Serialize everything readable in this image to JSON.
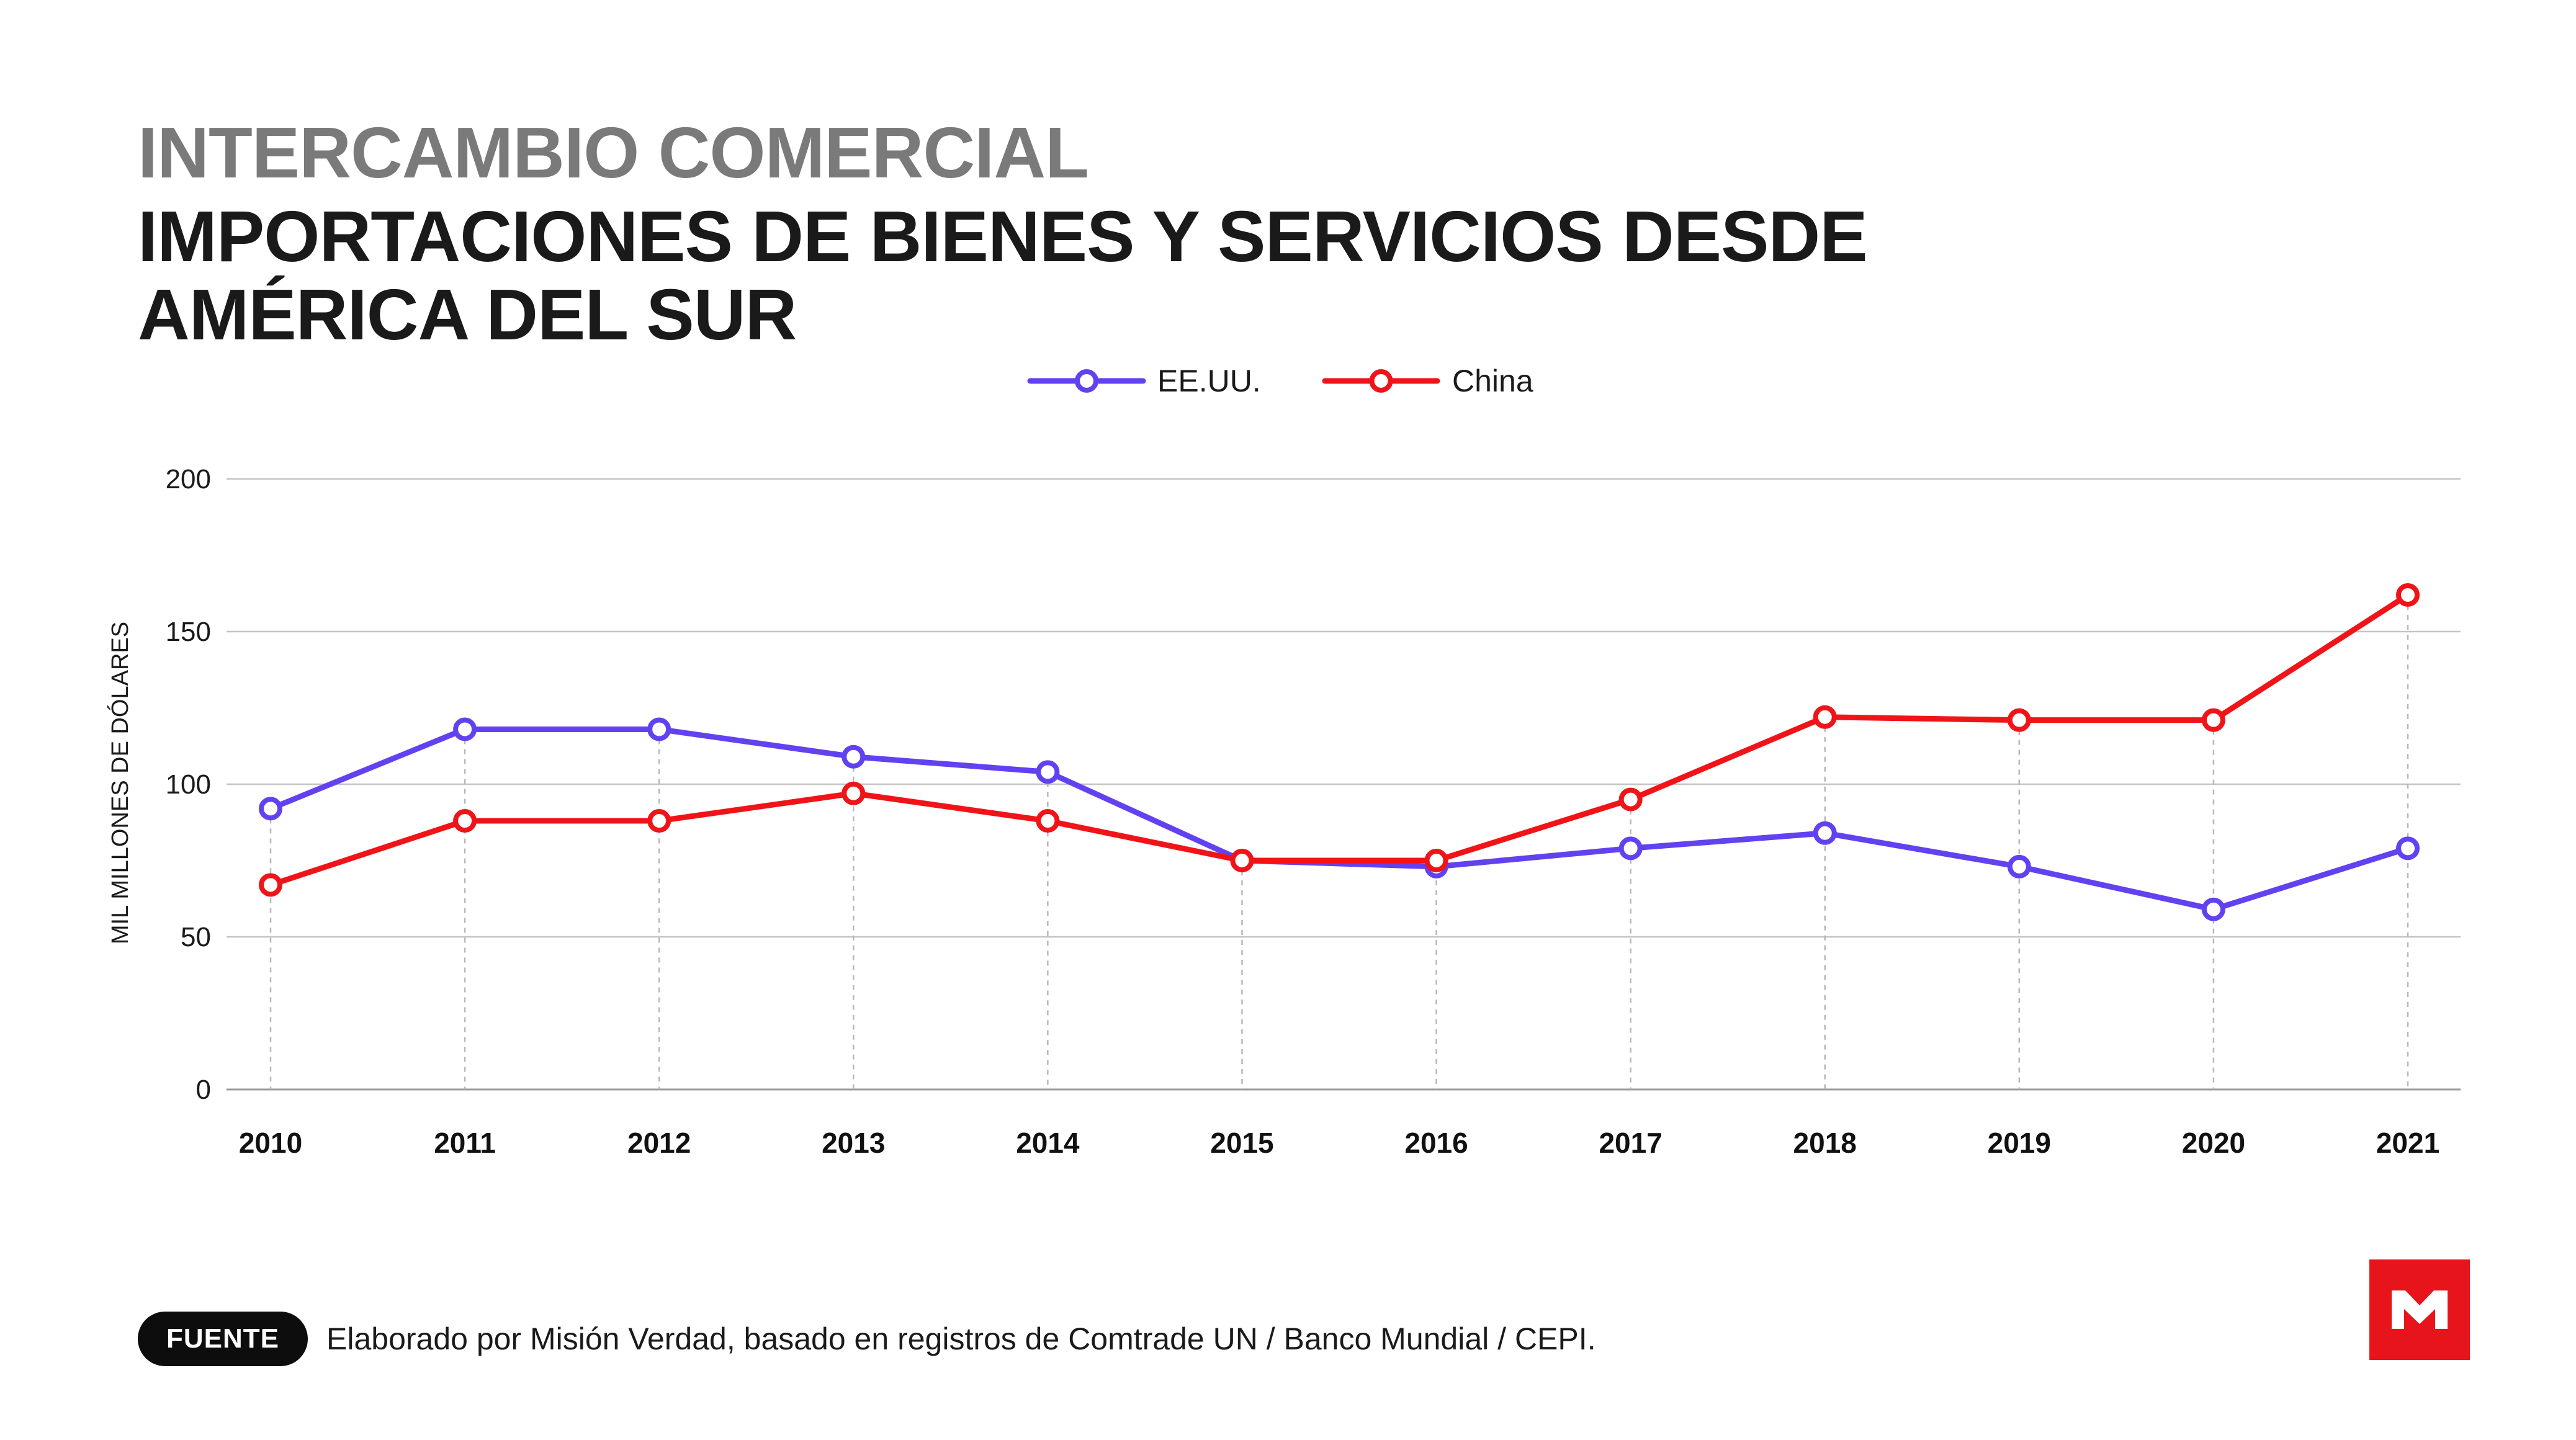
{
  "header": {
    "supertitle": "INTERCAMBIO COMERCIAL",
    "title": "IMPORTACIONES DE BIENES Y SERVICIOS DESDE AMÉRICA DEL SUR"
  },
  "footer": {
    "badge": "FUENTE",
    "source": "Elaborado por Misión Verdad, basado en registros de Comtrade UN / Banco Mundial / CEPI."
  },
  "logo": {
    "icon": "mision-verdad-logo",
    "color": "#e8141b"
  },
  "chart_data": {
    "type": "line",
    "title": "IMPORTACIONES DE BIENES Y SERVICIOS DESDE AMÉRICA DEL SUR",
    "ylabel": "MIL MILLONES DE DÓLARES",
    "xlabel": "",
    "categories": [
      "2010",
      "2011",
      "2012",
      "2013",
      "2014",
      "2015",
      "2016",
      "2017",
      "2018",
      "2019",
      "2020",
      "2021"
    ],
    "yticks": [
      "0",
      "50",
      "100",
      "150",
      "200"
    ],
    "ylim": [
      0,
      200
    ],
    "grid": true,
    "legend": "top-center",
    "series": [
      {
        "name": "EE.UU.",
        "color": "#6242f0",
        "values": [
          92,
          118,
          118,
          109,
          104,
          75,
          73,
          79,
          84,
          73,
          59,
          79
        ]
      },
      {
        "name": "China",
        "color": "#f01418",
        "values": [
          67,
          88,
          88,
          97,
          88,
          75,
          75,
          95,
          122,
          121,
          121,
          162
        ]
      }
    ]
  }
}
